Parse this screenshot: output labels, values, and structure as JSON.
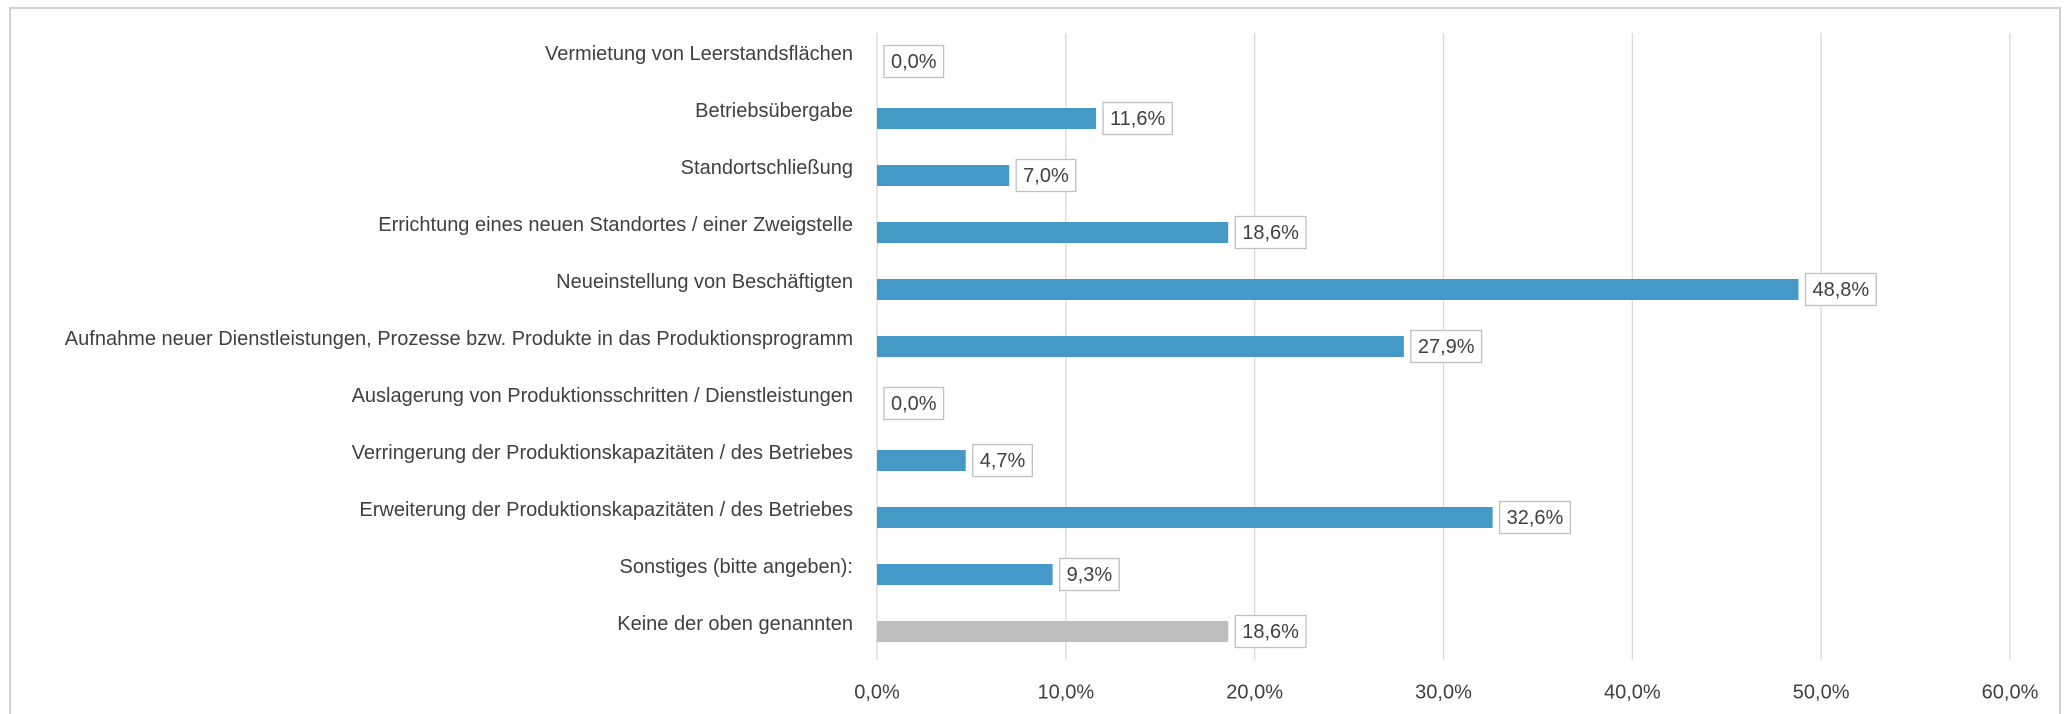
{
  "chart_data": {
    "type": "bar",
    "orientation": "horizontal",
    "categories": [
      "Vermietung von Leerstandsflächen",
      "Betriebsübergabe",
      "Standortschließung",
      "Errichtung eines neuen Standortes / einer Zweigstelle",
      "Neueinstellung von Beschäftigten",
      "Aufnahme neuer Dienstleistungen, Prozesse bzw. Produkte in das Produktionsprogramm",
      "Auslagerung von Produktionsschritten / Dienstleistungen",
      "Verringerung der Produktionskapazitäten / des Betriebes",
      "Erweiterung der Produktionskapazitäten / des Betriebes",
      "Sonstiges (bitte angeben):",
      "Keine der oben genannten"
    ],
    "values": [
      0,
      11.6,
      7.0,
      18.6,
      48.8,
      27.9,
      0,
      4.7,
      32.6,
      9.3,
      18.6
    ],
    "value_labels": [
      "0,0%",
      "11,6%",
      "7,0%",
      "18,6%",
      "48,8%",
      "27,9%",
      "0,0%",
      "4,7%",
      "32,6%",
      "9,3%",
      "18,6%"
    ],
    "colors": [
      "#4499c7",
      "#4499c7",
      "#4499c7",
      "#4499c7",
      "#4499c7",
      "#4499c7",
      "#4499c7",
      "#4499c7",
      "#4499c7",
      "#4499c7",
      "#bfbfbf"
    ],
    "xlim": [
      0,
      60
    ],
    "xticks": [
      {
        "value": 0,
        "label": "0,0%"
      },
      {
        "value": 10,
        "label": "10,0%"
      },
      {
        "value": 20,
        "label": "20,0%"
      },
      {
        "value": 30,
        "label": "30,0%"
      },
      {
        "value": 40,
        "label": "40,0%"
      },
      {
        "value": 50,
        "label": "50,0%"
      },
      {
        "value": 60,
        "label": "60,0%"
      }
    ],
    "grid": true
  }
}
